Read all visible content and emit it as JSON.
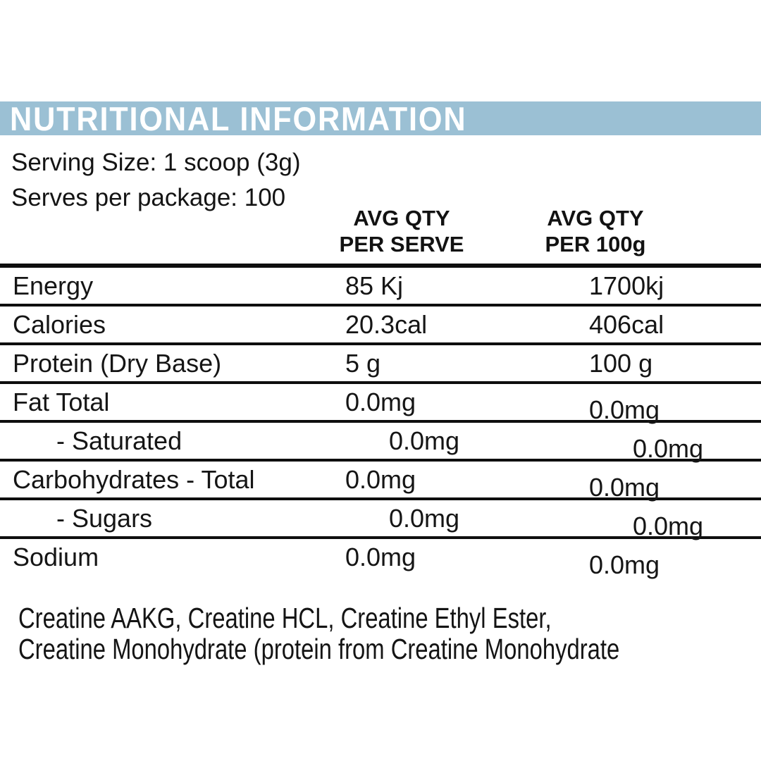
{
  "banner": {
    "title": "NUTRITIONAL INFORMATION",
    "bg_color": "#9bc0d4",
    "text_color": "#ffffff"
  },
  "serving": {
    "line1": "Serving Size: 1 scoop (3g)",
    "line2": "Serves per package: 100"
  },
  "table": {
    "col_headers": {
      "serve_line1": "AVG QTY",
      "serve_line2": "PER SERVE",
      "per100_line1": "AVG QTY",
      "per100_line2": "PER 100g"
    },
    "rows": [
      {
        "label": "Energy",
        "per_serve": "85 Kj",
        "per_100g": "1700kj"
      },
      {
        "label": "Calories",
        "per_serve": "20.3cal",
        "per_100g": "406cal"
      },
      {
        "label": "Protein (Dry Base)",
        "per_serve": "5 g",
        "per_100g": "100 g"
      },
      {
        "label": "Fat Total",
        "per_serve": "0.0mg",
        "per_100g": "0.0mg"
      },
      {
        "label": "- Saturated",
        "per_serve": "0.0mg",
        "per_100g": "0.0mg"
      },
      {
        "label": "Carbohydrates - Total",
        "per_serve": "0.0mg",
        "per_100g": "0.0mg"
      },
      {
        "label": "- Sugars",
        "per_serve": "0.0mg",
        "per_100g": "0.0mg"
      },
      {
        "label": "Sodium",
        "per_serve": "0.0mg",
        "per_100g": "0.0mg"
      }
    ]
  },
  "footer": {
    "line1": "Creatine AAKG, Creatine HCL, Creatine Ethyl Ester,",
    "line2": "Creatine Monohydrate (protein from Creatine Monohydrate"
  }
}
